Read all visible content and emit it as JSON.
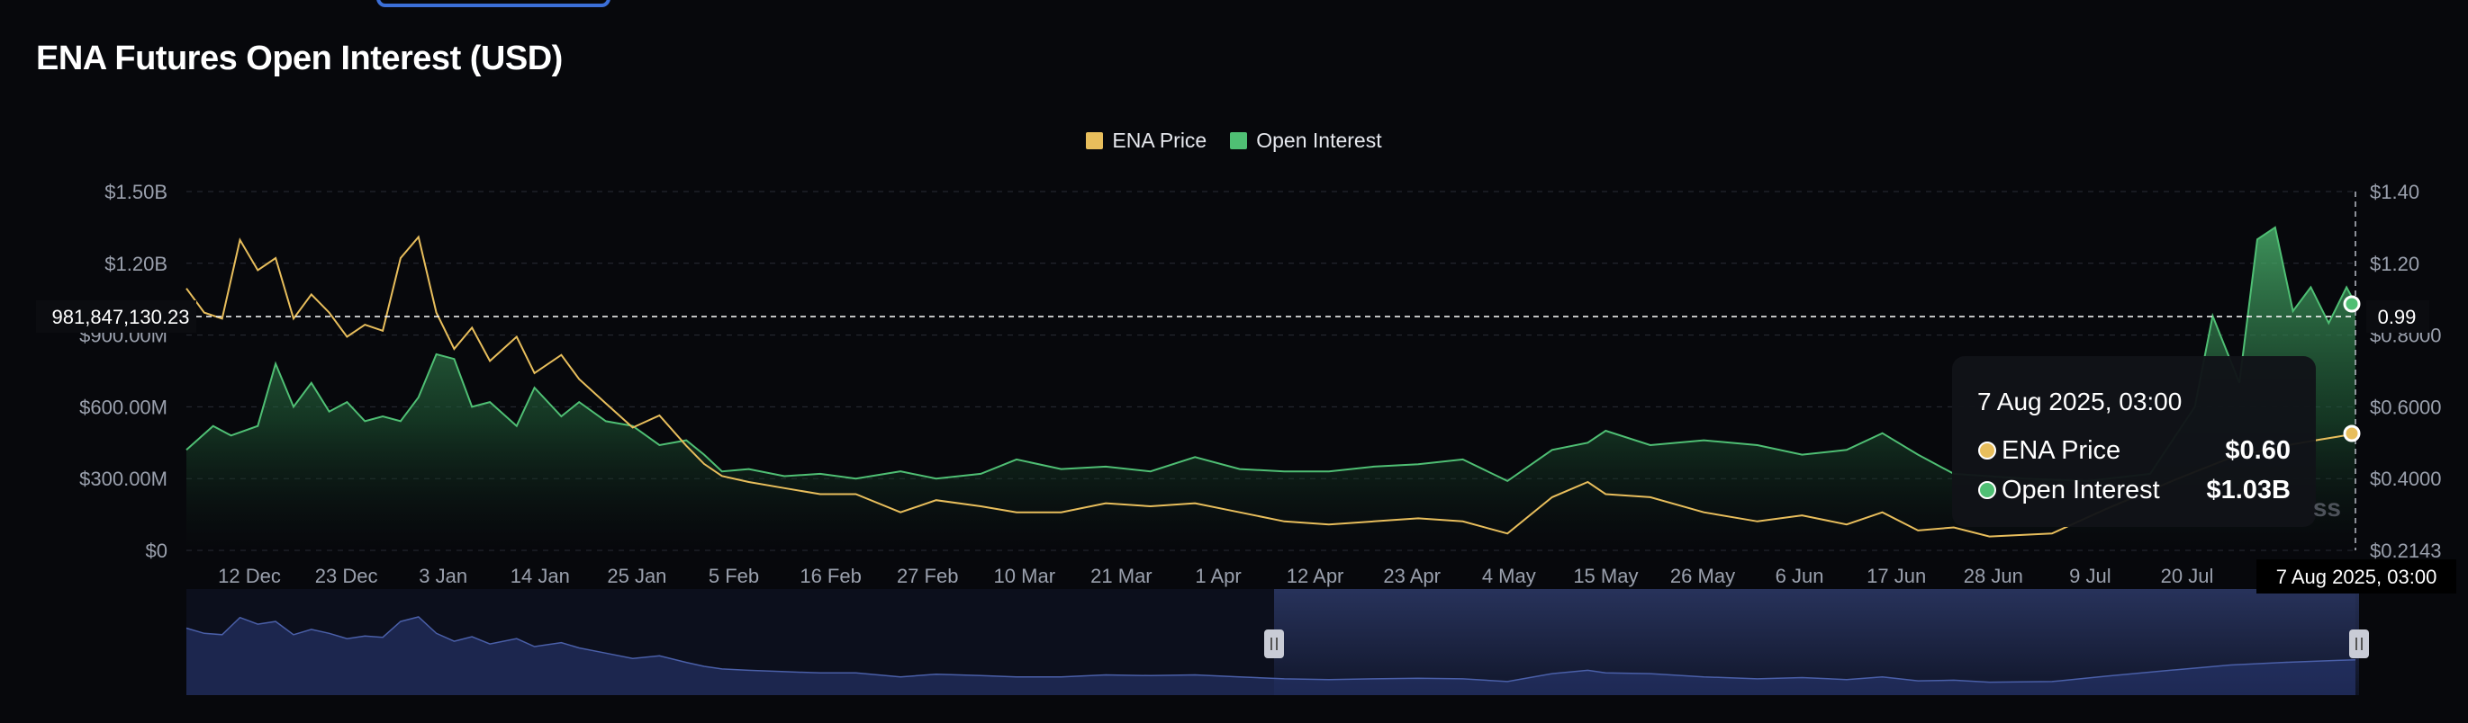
{
  "title": "ENA Futures Open Interest (USD)",
  "colors": {
    "background": "#07080c",
    "price": "#e8be5c",
    "open_interest": "#4fbf74",
    "navigator": "#4a5fa8",
    "grid": "#2a2d36"
  },
  "legend": [
    {
      "label": "ENA Price",
      "color": "#e8be5c"
    },
    {
      "label": "Open Interest",
      "color": "#4fbf74"
    }
  ],
  "crosshair": {
    "left_label": "981,847,130.23",
    "right_label": "0.99",
    "x_label": "7 Aug 2025, 03:00"
  },
  "tooltip": {
    "title": "7 Aug 2025, 03:00",
    "rows": [
      {
        "label": "ENA Price",
        "value": "$0.60",
        "color": "#e8be5c"
      },
      {
        "label": "Open Interest",
        "value": "$1.03B",
        "color": "#4fbf74"
      }
    ]
  },
  "watermark": "ss",
  "chart_data": {
    "type": "line",
    "title": "ENA Futures Open Interest (USD)",
    "x_ticks": [
      "12 Dec",
      "23 Dec",
      "3 Jan",
      "14 Jan",
      "25 Jan",
      "5 Feb",
      "16 Feb",
      "27 Feb",
      "10 Mar",
      "21 Mar",
      "1 Apr",
      "12 Apr",
      "23 Apr",
      "4 May",
      "15 May",
      "26 May",
      "6 Jun",
      "17 Jun",
      "28 Jun",
      "9 Jul",
      "20 Jul"
    ],
    "y_left_ticks": [
      "$1.50B",
      "$1.20B",
      "$900.00M",
      "$600.00M",
      "$300.00M",
      "$0"
    ],
    "y_right_ticks": [
      "$1.40",
      "$1.20",
      "$0.8000",
      "$0.6000",
      "$0.4000",
      "$0.2143"
    ],
    "y_left_range": [
      0,
      1500000000
    ],
    "y_right_range": [
      0.2143,
      1.4
    ],
    "grid": true,
    "legend_position": "top-center",
    "series": [
      {
        "name": "Open Interest",
        "axis": "left",
        "x": [
          "2024-12-07",
          "2024-12-10",
          "2024-12-12",
          "2024-12-15",
          "2024-12-17",
          "2024-12-19",
          "2024-12-21",
          "2024-12-23",
          "2024-12-25",
          "2024-12-27",
          "2024-12-29",
          "2024-12-31",
          "2025-01-02",
          "2025-01-04",
          "2025-01-06",
          "2025-01-08",
          "2025-01-10",
          "2025-01-13",
          "2025-01-15",
          "2025-01-18",
          "2025-01-20",
          "2025-01-23",
          "2025-01-26",
          "2025-01-29",
          "2025-02-01",
          "2025-02-03",
          "2025-02-05",
          "2025-02-08",
          "2025-02-12",
          "2025-02-16",
          "2025-02-20",
          "2025-02-25",
          "2025-03-01",
          "2025-03-06",
          "2025-03-10",
          "2025-03-15",
          "2025-03-20",
          "2025-03-25",
          "2025-03-30",
          "2025-04-04",
          "2025-04-09",
          "2025-04-14",
          "2025-04-19",
          "2025-04-24",
          "2025-04-29",
          "2025-05-04",
          "2025-05-09",
          "2025-05-13",
          "2025-05-15",
          "2025-05-20",
          "2025-05-26",
          "2025-06-01",
          "2025-06-06",
          "2025-06-11",
          "2025-06-15",
          "2025-06-19",
          "2025-06-23",
          "2025-07-01",
          "2025-07-08",
          "2025-07-15",
          "2025-07-20",
          "2025-07-22",
          "2025-07-25",
          "2025-07-27",
          "2025-07-29",
          "2025-07-31",
          "2025-08-02",
          "2025-08-04",
          "2025-08-06",
          "2025-08-07"
        ],
        "values": [
          420000000,
          520000000,
          480000000,
          520000000,
          780000000,
          600000000,
          700000000,
          580000000,
          620000000,
          540000000,
          560000000,
          540000000,
          640000000,
          820000000,
          800000000,
          600000000,
          620000000,
          520000000,
          680000000,
          560000000,
          620000000,
          540000000,
          520000000,
          440000000,
          460000000,
          400000000,
          330000000,
          340000000,
          310000000,
          320000000,
          300000000,
          330000000,
          300000000,
          320000000,
          380000000,
          340000000,
          350000000,
          330000000,
          390000000,
          340000000,
          330000000,
          330000000,
          350000000,
          360000000,
          380000000,
          290000000,
          420000000,
          450000000,
          500000000,
          440000000,
          460000000,
          440000000,
          400000000,
          420000000,
          490000000,
          400000000,
          320000000,
          300000000,
          290000000,
          320000000,
          600000000,
          980000000,
          700000000,
          1300000000,
          1350000000,
          1000000000,
          1100000000,
          950000000,
          1100000000,
          1030000000
        ]
      },
      {
        "name": "ENA Price",
        "axis": "right",
        "x": [
          "2024-12-07",
          "2024-12-09",
          "2024-12-11",
          "2024-12-13",
          "2024-12-15",
          "2024-12-17",
          "2024-12-19",
          "2024-12-21",
          "2024-12-23",
          "2024-12-25",
          "2024-12-27",
          "2024-12-29",
          "2024-12-31",
          "2025-01-02",
          "2025-01-04",
          "2025-01-06",
          "2025-01-08",
          "2025-01-10",
          "2025-01-13",
          "2025-01-15",
          "2025-01-18",
          "2025-01-20",
          "2025-01-23",
          "2025-01-26",
          "2025-01-29",
          "2025-02-01",
          "2025-02-03",
          "2025-02-05",
          "2025-02-08",
          "2025-02-12",
          "2025-02-16",
          "2025-02-20",
          "2025-02-25",
          "2025-03-01",
          "2025-03-06",
          "2025-03-10",
          "2025-03-15",
          "2025-03-20",
          "2025-03-25",
          "2025-03-30",
          "2025-04-04",
          "2025-04-09",
          "2025-04-14",
          "2025-04-19",
          "2025-04-24",
          "2025-04-29",
          "2025-05-04",
          "2025-05-09",
          "2025-05-13",
          "2025-05-15",
          "2025-05-20",
          "2025-05-26",
          "2025-06-01",
          "2025-06-06",
          "2025-06-11",
          "2025-06-15",
          "2025-06-19",
          "2025-06-23",
          "2025-06-27",
          "2025-07-04",
          "2025-07-10",
          "2025-07-18",
          "2025-07-24",
          "2025-07-30",
          "2025-08-03",
          "2025-08-05",
          "2025-08-07"
        ],
        "values": [
          1.08,
          1.0,
          0.98,
          1.24,
          1.14,
          1.18,
          0.98,
          1.06,
          1.0,
          0.92,
          0.96,
          0.94,
          1.18,
          1.25,
          1.0,
          0.88,
          0.95,
          0.84,
          0.92,
          0.8,
          0.86,
          0.78,
          0.7,
          0.62,
          0.66,
          0.56,
          0.5,
          0.46,
          0.44,
          0.42,
          0.4,
          0.4,
          0.34,
          0.38,
          0.36,
          0.34,
          0.34,
          0.37,
          0.36,
          0.37,
          0.34,
          0.31,
          0.3,
          0.31,
          0.32,
          0.31,
          0.27,
          0.39,
          0.44,
          0.4,
          0.39,
          0.34,
          0.31,
          0.33,
          0.3,
          0.34,
          0.28,
          0.29,
          0.26,
          0.27,
          0.35,
          0.45,
          0.52,
          0.56,
          0.58,
          0.59,
          0.6
        ]
      }
    ]
  }
}
